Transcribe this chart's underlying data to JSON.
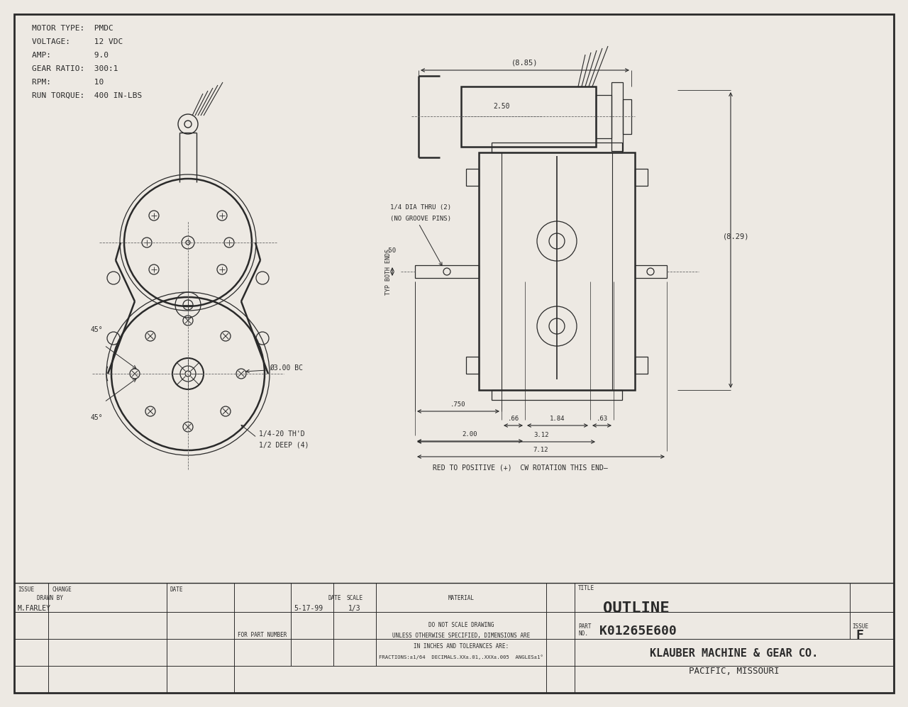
{
  "bg_color": "#ede9e3",
  "line_color": "#2a2a2a",
  "specs": [
    "MOTOR TYPE:  PMDC",
    "VOLTAGE:     12 VDC",
    "AMP:         9.0",
    "GEAR RATIO:  300:1",
    "RPM:         10",
    "RUN TORQUE:  400 IN-LBS"
  ],
  "title": "OUTLINE",
  "part_no": "K01265E600",
  "issue": "F",
  "company": "KLAUBER MACHINE & GEAR CO.",
  "city": "PACIFIC, MISSOURI",
  "drawn_by": "M.FARLEY",
  "date": "5-17-99",
  "scale": "1/3",
  "tol1": "DO NOT SCALE DRAWING",
  "tol2": "UNLESS OTHERWISE SPECIFIED, DIMENSIONS ARE",
  "tol3": "IN INCHES AND TOLERANCES ARE:",
  "tol4": "FRACTIONS:±1/64  DECIMALS.XX±.01,.XXX±.005  ANGLES±1°"
}
